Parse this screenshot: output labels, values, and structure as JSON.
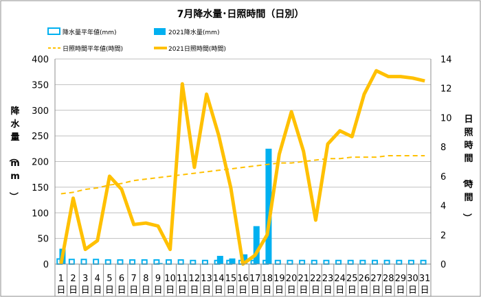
{
  "chart_data": {
    "type": "bar+line",
    "title": "7月降水量･日照時間（日別）",
    "categories": [
      "1",
      "2",
      "3",
      "4",
      "5",
      "6",
      "7",
      "8",
      "9",
      "10",
      "11",
      "12",
      "13",
      "14",
      "15",
      "16",
      "17",
      "18",
      "19",
      "20",
      "21",
      "22",
      "23",
      "24",
      "25",
      "26",
      "27",
      "28",
      "29",
      "30",
      "31"
    ],
    "category_suffix": "日",
    "y_left": {
      "label": "降水量（mm）",
      "min": 0,
      "max": 400,
      "step": 50
    },
    "y_right": {
      "label": "日照時間（時間）",
      "min": 0,
      "max": 14,
      "step": 2
    },
    "grid": true,
    "legend_position": "top",
    "series": [
      {
        "name": "降水量平年値(mm)",
        "type": "bar",
        "axis": "left",
        "color": "#00B0F0",
        "style": "hollow",
        "values": [
          10,
          9,
          9,
          9,
          8,
          8,
          8,
          8,
          8,
          8,
          8,
          7,
          7,
          7,
          7,
          7,
          7,
          7,
          7,
          7,
          7,
          7,
          7,
          7,
          7,
          7,
          7,
          7,
          7,
          7,
          7
        ]
      },
      {
        "name": "2021降水量(mm)",
        "type": "bar",
        "axis": "left",
        "color": "#00B0F0",
        "style": "solid",
        "values": [
          30,
          0,
          0,
          0,
          0,
          0,
          0,
          0,
          2,
          0,
          0,
          0,
          0,
          16,
          11,
          19,
          74,
          225,
          0,
          0,
          0,
          0,
          0,
          0,
          0,
          0,
          0,
          0,
          0,
          0,
          0
        ]
      },
      {
        "name": "日照時間平年値(時間)",
        "type": "line",
        "axis": "right",
        "color": "#FFC000",
        "style": "dashed",
        "values": [
          4.8,
          4.9,
          5.1,
          5.2,
          5.4,
          5.5,
          5.7,
          5.8,
          5.9,
          6.0,
          6.1,
          6.2,
          6.3,
          6.4,
          6.5,
          6.6,
          6.7,
          6.8,
          6.9,
          6.9,
          7.0,
          7.1,
          7.2,
          7.2,
          7.3,
          7.3,
          7.3,
          7.4,
          7.4,
          7.4,
          7.4
        ]
      },
      {
        "name": "2021日照時間(時間)",
        "type": "line",
        "axis": "right",
        "color": "#FFC000",
        "style": "solid",
        "values": [
          0,
          4.5,
          1.0,
          1.6,
          6.0,
          5.1,
          2.7,
          2.8,
          2.6,
          1.0,
          12.3,
          6.6,
          11.6,
          8.8,
          5.2,
          0,
          0.6,
          2.0,
          7.5,
          10.4,
          7.7,
          3.0,
          8.2,
          9.1,
          8.7,
          11.6,
          13.2,
          12.8,
          12.8,
          12.7,
          12.5
        ]
      }
    ]
  }
}
